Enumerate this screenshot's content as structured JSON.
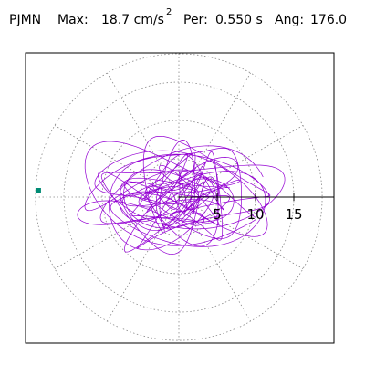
{
  "header": {
    "station": "PJMN",
    "max_label": "Max:",
    "max_value": "18.7 cm/s",
    "max_exp": "2",
    "per_label": "Per:",
    "per_value": "0.550 s",
    "ang_label": "Ang:",
    "ang_value": "176.0"
  },
  "chart_data": {
    "type": "polar-particle-motion",
    "r_ticks": [
      5,
      10,
      15
    ],
    "r_tick_labels": [
      "5",
      "10",
      "15"
    ],
    "r_max": 18.7,
    "angle_deg": 176.0,
    "trace_color": "#9400d3",
    "marker_color": "#008b74",
    "grid": true,
    "grid_style": "dotted"
  }
}
